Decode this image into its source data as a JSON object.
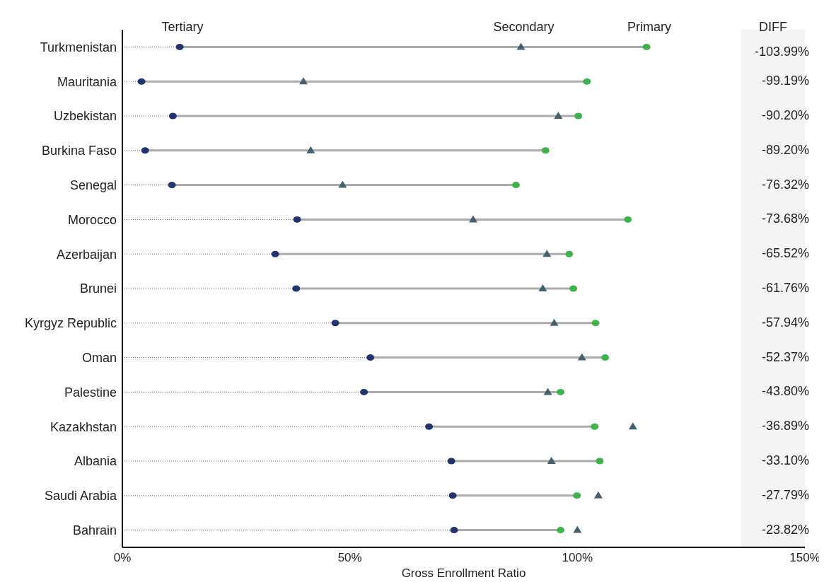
{
  "chart_data": {
    "type": "scatter",
    "orientation": "horizontal",
    "xlabel": "Gross Enrollment Ratio",
    "categories": [
      "Turkmenistan",
      "Mauritania",
      "Uzbekistan",
      "Burkina Faso",
      "Senegal",
      "Morocco",
      "Azerbaijan",
      "Brunei",
      "Kyrgyz Republic",
      "Oman",
      "Palestine",
      "Kazakhstan",
      "Albania",
      "Saudi Arabia",
      "Bahrain"
    ],
    "series": [
      {
        "name": "Tertiary",
        "color": "#1f3470",
        "marker": "circle",
        "values": [
          12.6,
          4.2,
          11.1,
          5.0,
          10.9,
          38.4,
          33.6,
          38.2,
          46.8,
          54.5,
          53.1,
          67.4,
          72.3,
          72.6,
          72.9
        ]
      },
      {
        "name": "Secondary",
        "color": "#44606e",
        "marker": "triangle",
        "values": [
          87.6,
          39.8,
          95.8,
          41.4,
          48.4,
          77.1,
          93.3,
          92.4,
          94.9,
          101.0,
          93.5,
          112.2,
          94.3,
          104.6,
          100.0
        ]
      },
      {
        "name": "Primary",
        "color": "#3cb44b",
        "marker": "circle",
        "values": [
          115.2,
          102.1,
          100.2,
          93.0,
          86.5,
          111.1,
          98.2,
          99.1,
          104.0,
          106.1,
          96.3,
          103.8,
          104.9,
          99.9,
          96.3
        ]
      }
    ],
    "xlim": [
      0,
      150
    ],
    "xticks": [
      {
        "value": 0,
        "label": "0%"
      },
      {
        "value": 50,
        "label": "50%"
      },
      {
        "value": 100,
        "label": "100%"
      },
      {
        "value": 150,
        "label": "150%"
      }
    ],
    "grid": false,
    "annotations": [
      "DIFF",
      "-103.99%",
      "-99.19%",
      "-90.20%",
      "-89.20%",
      "-76.32%",
      "-73.68%",
      "-65.52%",
      "-61.76%",
      "-57.94%",
      "-52.37%",
      "-43.80%",
      "-36.89%",
      "-33.10%",
      "-27.79%",
      "-23.82%"
    ]
  }
}
